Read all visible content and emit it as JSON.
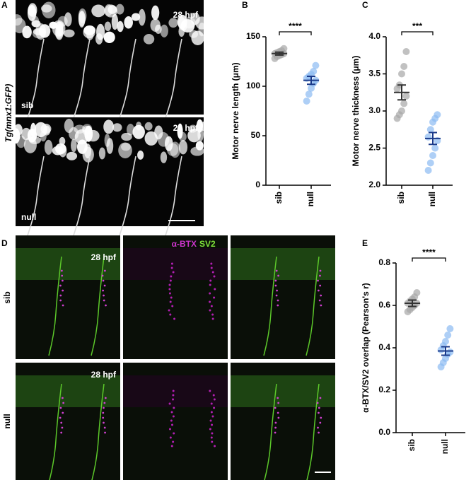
{
  "panel_labels": [
    "A",
    "B",
    "C",
    "D",
    "E"
  ],
  "panel_a": {
    "reporter": "Tg(mnx1:GFP)",
    "timepoint": [
      "28 hpf",
      "28 hpf"
    ],
    "conditions": [
      "sib",
      "null"
    ]
  },
  "panel_d": {
    "stain_1": "α-BTX",
    "stain_2": "SV2",
    "timepoint": [
      "28 hpf",
      "28 hpf"
    ],
    "conditions": [
      "sib",
      "null"
    ]
  },
  "chart_data": [
    {
      "type": "dotplot",
      "ylabel": "Motor nerve length (μm)",
      "categories": [
        "sib",
        "null"
      ],
      "values": [
        [
          128,
          130,
          131,
          132,
          133,
          133,
          134,
          135,
          136,
          138
        ],
        [
          85,
          92,
          98,
          103,
          106,
          108,
          110,
          112,
          115,
          121
        ]
      ],
      "means": [
        133,
        106
      ],
      "sems": [
        1.5,
        4
      ],
      "colors": [
        "#a6a6a6",
        "#8cbaf2"
      ],
      "mean_colors": [
        "#333333",
        "#1a3a8a"
      ],
      "annotation": "****",
      "ylim": [
        0,
        150
      ],
      "yticks": [
        0,
        50,
        100,
        150
      ]
    },
    {
      "type": "dotplot",
      "ylabel": "Motor nerve thickness (μm)",
      "categories": [
        "sib",
        "null"
      ],
      "values": [
        [
          2.9,
          2.95,
          3.0,
          3.1,
          3.2,
          3.3,
          3.35,
          3.5,
          3.6,
          3.8
        ],
        [
          2.2,
          2.3,
          2.4,
          2.5,
          2.6,
          2.65,
          2.75,
          2.85,
          2.9,
          2.95
        ]
      ],
      "means": [
        3.25,
        2.63
      ],
      "sems": [
        0.1,
        0.08
      ],
      "colors": [
        "#a6a6a6",
        "#8cbaf2"
      ],
      "mean_colors": [
        "#333333",
        "#1a3a8a"
      ],
      "annotation": "***",
      "ylim": [
        2,
        4
      ],
      "yticks": [
        {
          "value": 2,
          "label": "2.0"
        },
        2.5,
        {
          "value": 3,
          "label": "3.0"
        },
        3.5,
        {
          "value": 4,
          "label": "4.0"
        }
      ]
    },
    {
      "type": "dotplot",
      "ylabel": "α-BTX/SV2 overlap (Pearson's r)",
      "categories": [
        "sib",
        "null"
      ],
      "values": [
        [
          0.57,
          0.58,
          0.59,
          0.6,
          0.61,
          0.61,
          0.62,
          0.63,
          0.64,
          0.66
        ],
        [
          0.31,
          0.33,
          0.35,
          0.37,
          0.38,
          0.39,
          0.41,
          0.43,
          0.46,
          0.49
        ]
      ],
      "means": [
        0.61,
        0.385
      ],
      "sems": [
        0.015,
        0.02
      ],
      "colors": [
        "#a6a6a6",
        "#8cbaf2"
      ],
      "mean_colors": [
        "#333333",
        "#1a3a8a"
      ],
      "annotation": "****",
      "ylim": [
        0,
        0.8
      ],
      "yticks": [
        {
          "value": 0,
          "label": "0.0"
        },
        0.2,
        0.4,
        0.6,
        0.8
      ]
    }
  ]
}
